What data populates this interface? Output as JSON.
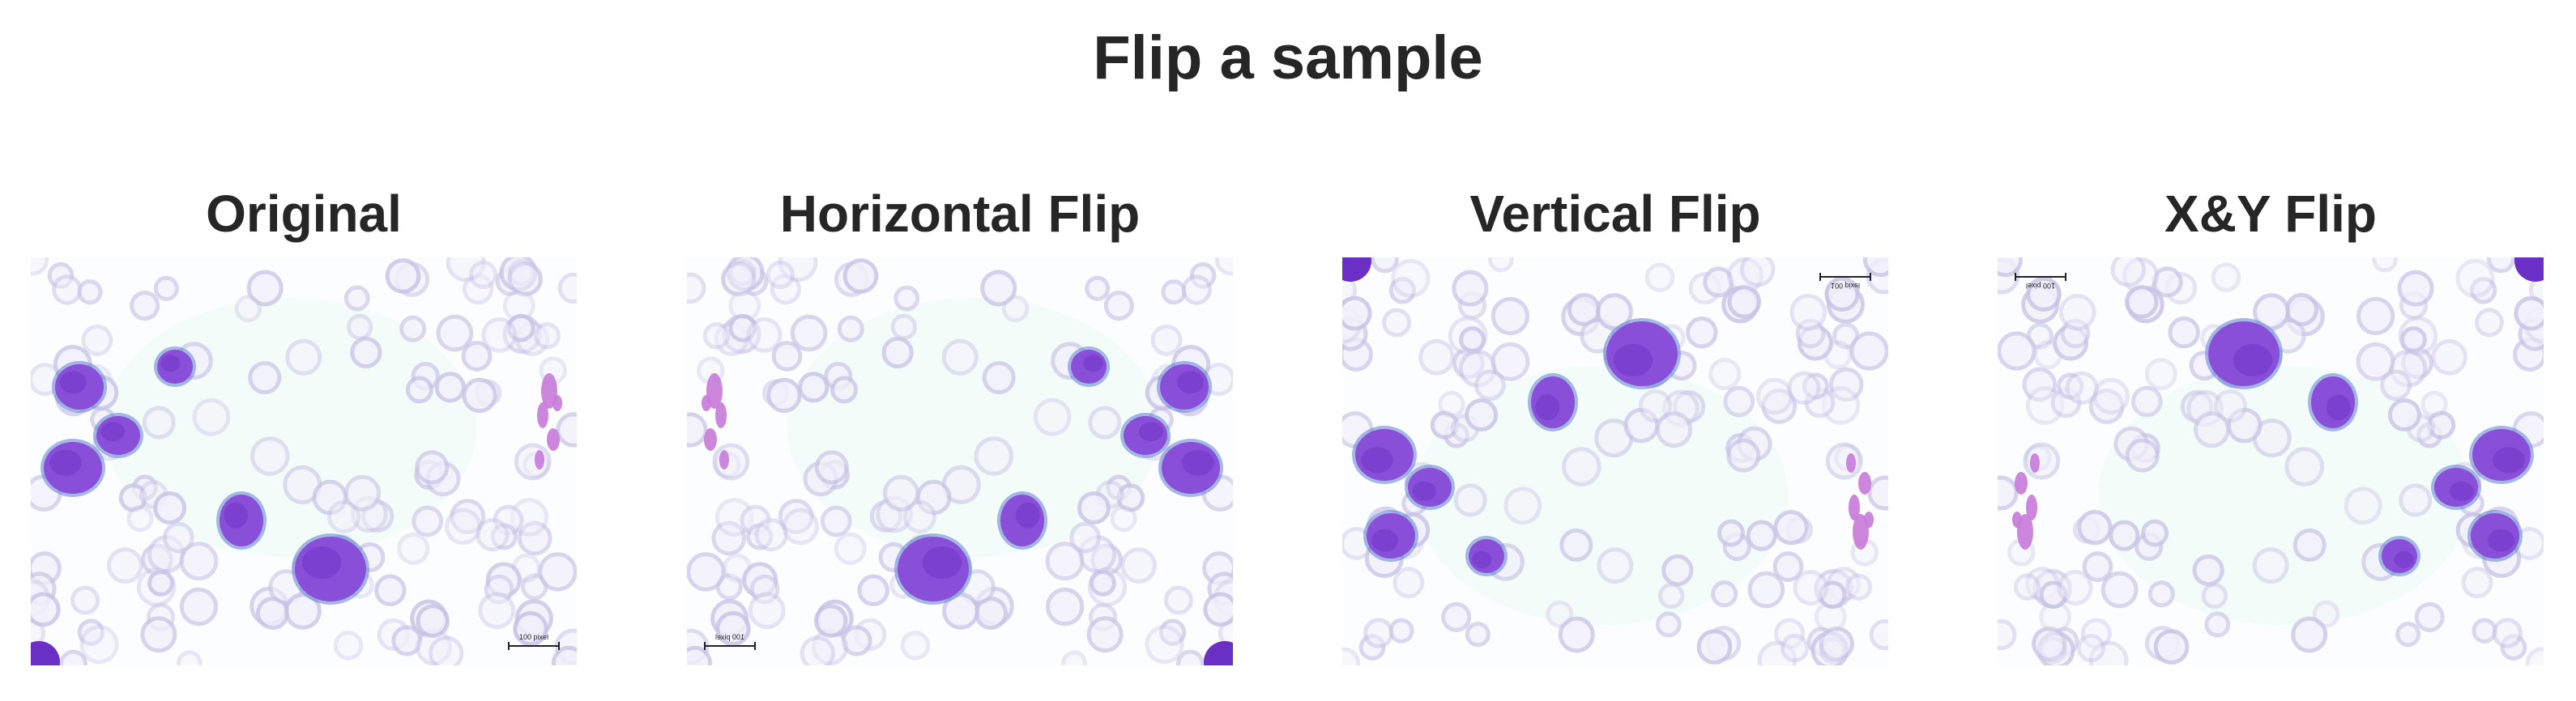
{
  "figure": {
    "title": "Flip a sample"
  },
  "panels": [
    {
      "title": "Original",
      "flip": "none",
      "scale_bar_label": "100 pixel"
    },
    {
      "title": "Horizontal Flip",
      "flip": "horizontal",
      "scale_bar_label": "100 pixel"
    },
    {
      "title": "Vertical Flip",
      "flip": "vertical",
      "scale_bar_label": "100 pixel"
    },
    {
      "title": "X&Y Flip",
      "flip": "both",
      "scale_bar_label": "100 pixel"
    }
  ],
  "colors": {
    "background": "#fbfdff",
    "red_cell": "#c9c4e6",
    "red_cell_center": "#f2f0fb",
    "white_cell": "#8a4fd8",
    "white_cell_dark": "#6a2fc4",
    "platelet": "#c77ad9"
  }
}
